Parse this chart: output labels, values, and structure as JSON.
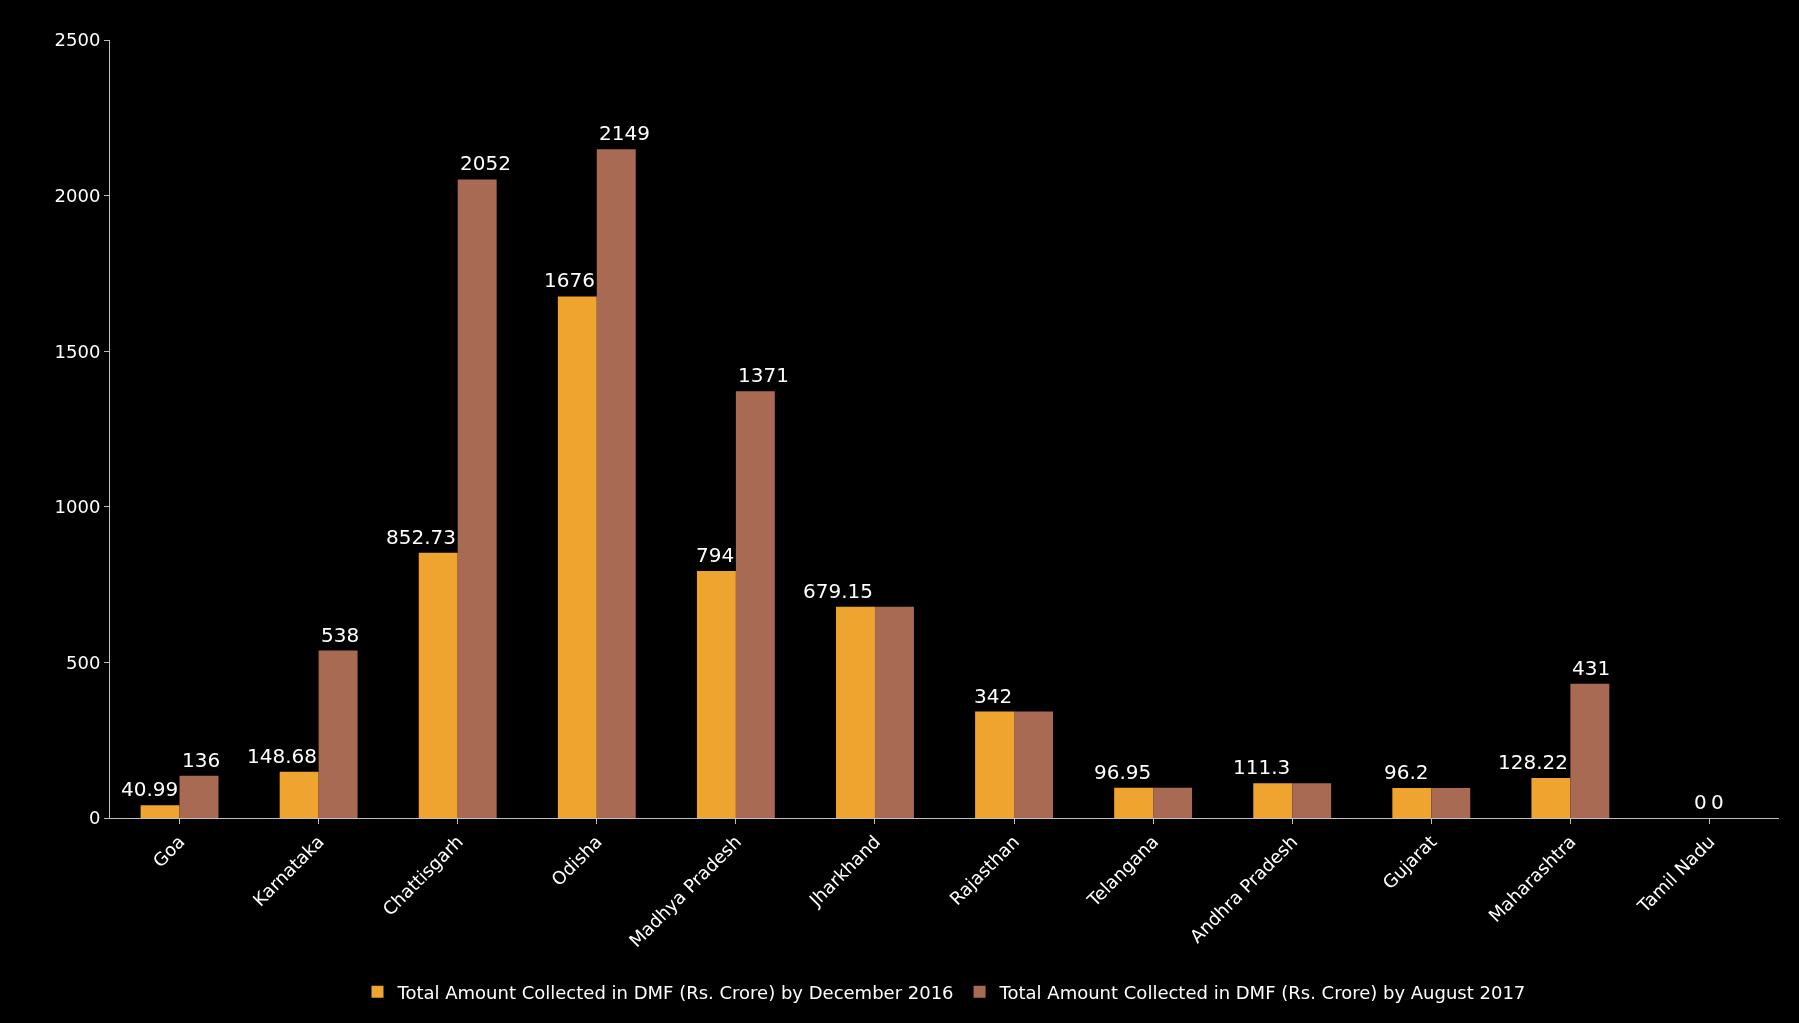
{
  "chart_data": {
    "type": "bar",
    "categories": [
      "Goa",
      "Karnataka",
      "Chattisgarh",
      "Odisha",
      "Madhya Pradesh",
      "Jharkhand",
      "Rajasthan",
      "Telangana",
      "Andhra Pradesh",
      "Gujarat",
      "Maharashtra",
      "Tamil Nadu"
    ],
    "series": [
      {
        "name": "Total Amount Collected in DMF (Rs. Crore) by December 2016",
        "color": "#f0a430",
        "values": [
          40.99,
          148.68,
          852.73,
          1676,
          794,
          679.15,
          342,
          96.95,
          111.3,
          96.2,
          128.22,
          0
        ],
        "value_labels": [
          "40.99",
          "148.68",
          "852.73",
          "1676",
          "794",
          "679.15",
          "342",
          "96.95",
          "111.3",
          "96.2",
          "128.22",
          "0"
        ]
      },
      {
        "name": "Total Amount Collected in DMF (Rs. Crore) by August 2017",
        "color": "#a86a52",
        "values": [
          136,
          538,
          2052,
          2149,
          1371,
          679.15,
          342,
          96.95,
          111.3,
          96.2,
          431,
          0
        ],
        "value_labels": [
          "136",
          "538",
          "2052",
          "2149",
          "1371",
          null,
          null,
          null,
          null,
          null,
          "431",
          "0"
        ]
      }
    ],
    "ylim": [
      0,
      2500
    ],
    "yticks": [
      0,
      500,
      1000,
      1500,
      2000,
      2500
    ],
    "grid": false,
    "legend": "bottom"
  }
}
